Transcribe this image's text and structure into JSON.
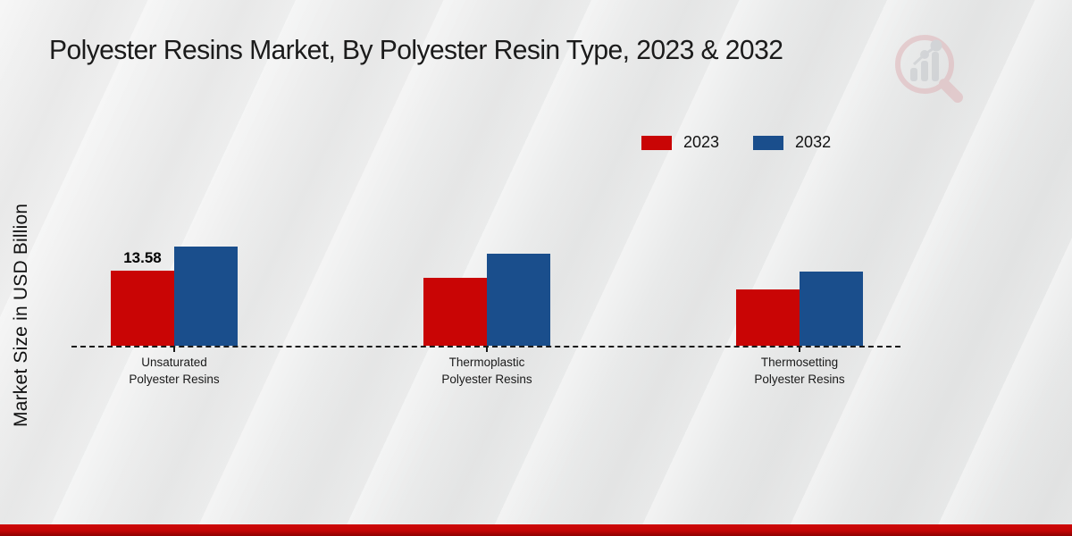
{
  "chart_data": {
    "type": "bar",
    "title": "Polyester Resins Market, By Polyester Resin Type, 2023 & 2032",
    "ylabel": "Market Size in USD Billion",
    "xlabel": "",
    "categories": [
      "Unsaturated Polyester Resins",
      "Thermoplastic Polyester Resins",
      "Thermosetting Polyester Resins"
    ],
    "series": [
      {
        "name": "2023",
        "color": "#c90505",
        "values": [
          13.58,
          12.3,
          10.2
        ],
        "labels": [
          "13.58",
          "",
          ""
        ]
      },
      {
        "name": "2032",
        "color": "#1a4e8c",
        "values": [
          17.95,
          16.65,
          13.4
        ],
        "labels": [
          "",
          "",
          ""
        ]
      }
    ],
    "ylim": [
      0,
      20
    ],
    "grid": false,
    "legend_position": "top-right",
    "baseline_style": "dashed",
    "y_tick_labels_visible": false
  },
  "branding": {
    "logo_icon": "magnifier-bar-chart-logo",
    "footer_band_color": "#c20505"
  }
}
